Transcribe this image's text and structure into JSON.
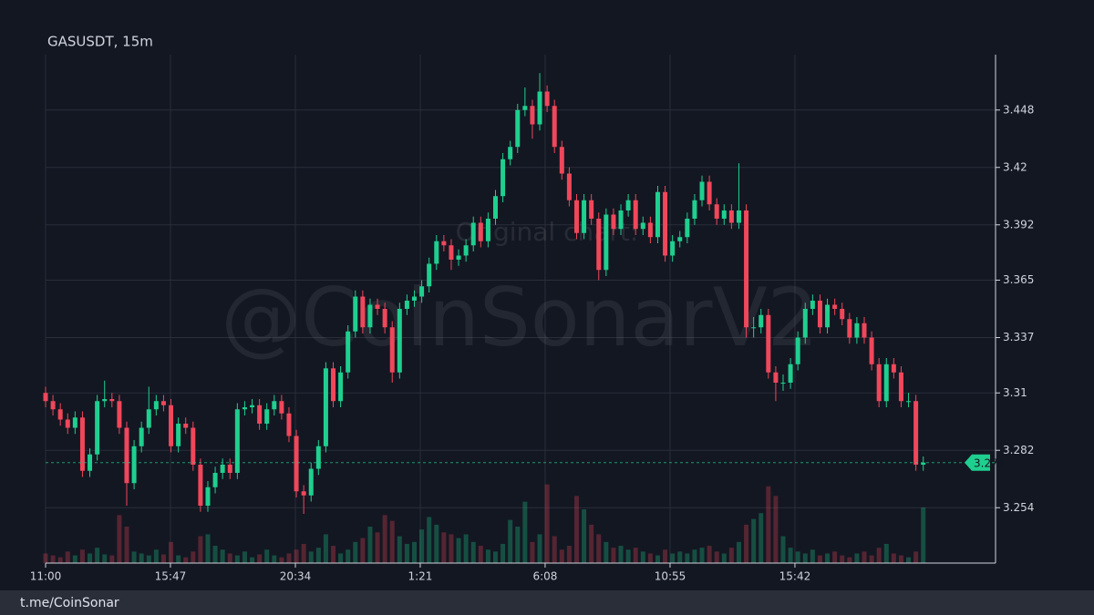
{
  "chart_data": {
    "type": "candlestick",
    "title": "GASUSDT, 15m",
    "open": [
      3.31,
      3.306,
      3.302,
      3.297,
      3.293,
      3.298,
      3.272,
      3.28,
      3.306,
      3.307,
      3.306,
      3.293,
      3.266,
      3.284,
      3.293,
      3.302,
      3.306,
      3.304,
      3.284,
      3.295,
      3.293,
      3.275,
      3.255,
      3.264,
      3.271,
      3.275,
      3.271,
      3.302,
      3.303,
      3.304,
      3.295,
      3.302,
      3.306,
      3.3,
      3.289,
      3.262,
      3.26,
      3.273,
      3.284,
      3.322,
      3.306,
      3.32,
      3.34,
      3.357,
      3.342,
      3.353,
      3.351,
      3.342,
      3.32,
      3.351,
      3.355,
      3.357,
      3.362,
      3.373,
      3.384,
      3.382,
      3.375,
      3.377,
      3.382,
      3.393,
      3.384,
      3.395,
      3.406,
      3.424,
      3.43,
      3.448,
      3.45,
      3.441,
      3.457,
      3.45,
      3.43,
      3.417,
      3.404,
      3.388,
      3.404,
      3.395,
      3.37,
      3.397,
      3.39,
      3.399,
      3.404,
      3.39,
      3.393,
      3.386,
      3.408,
      3.377,
      3.384,
      3.386,
      3.395,
      3.404,
      3.413,
      3.402,
      3.395,
      3.399,
      3.393,
      3.399,
      3.342,
      3.342,
      3.348,
      3.32,
      3.315,
      3.315,
      3.324,
      3.337,
      3.351,
      3.355,
      3.342,
      3.353,
      3.351,
      3.346,
      3.337,
      3.344,
      3.337,
      3.324,
      3.306,
      3.324,
      3.32,
      3.306,
      3.306,
      3.275
    ],
    "high": [
      3.313,
      3.309,
      3.305,
      3.3,
      3.301,
      3.301,
      3.283,
      3.309,
      3.316,
      3.31,
      3.309,
      3.296,
      3.287,
      3.296,
      3.313,
      3.309,
      3.309,
      3.307,
      3.298,
      3.298,
      3.296,
      3.278,
      3.267,
      3.274,
      3.278,
      3.278,
      3.305,
      3.306,
      3.307,
      3.307,
      3.305,
      3.309,
      3.309,
      3.303,
      3.292,
      3.265,
      3.276,
      3.287,
      3.325,
      3.325,
      3.323,
      3.343,
      3.36,
      3.36,
      3.356,
      3.356,
      3.354,
      3.345,
      3.354,
      3.358,
      3.36,
      3.365,
      3.376,
      3.387,
      3.387,
      3.385,
      3.38,
      3.385,
      3.396,
      3.396,
      3.398,
      3.409,
      3.427,
      3.433,
      3.451,
      3.459,
      3.453,
      3.466,
      3.46,
      3.453,
      3.433,
      3.42,
      3.407,
      3.407,
      3.407,
      3.398,
      3.4,
      3.4,
      3.402,
      3.407,
      3.407,
      3.396,
      3.396,
      3.411,
      3.411,
      3.387,
      3.389,
      3.398,
      3.407,
      3.416,
      3.416,
      3.405,
      3.402,
      3.402,
      3.422,
      3.402,
      3.347,
      3.351,
      3.351,
      3.323,
      3.319,
      3.327,
      3.34,
      3.354,
      3.358,
      3.358,
      3.356,
      3.356,
      3.354,
      3.349,
      3.347,
      3.347,
      3.34,
      3.327,
      3.327,
      3.327,
      3.323,
      3.31,
      3.309,
      3.279
    ],
    "low": [
      3.303,
      3.299,
      3.294,
      3.29,
      3.29,
      3.269,
      3.269,
      3.277,
      3.303,
      3.303,
      3.29,
      3.255,
      3.263,
      3.281,
      3.29,
      3.299,
      3.301,
      3.281,
      3.281,
      3.29,
      3.272,
      3.252,
      3.252,
      3.261,
      3.268,
      3.268,
      3.268,
      3.299,
      3.3,
      3.292,
      3.292,
      3.299,
      3.297,
      3.286,
      3.259,
      3.251,
      3.257,
      3.27,
      3.281,
      3.303,
      3.303,
      3.317,
      3.337,
      3.339,
      3.339,
      3.348,
      3.339,
      3.315,
      3.317,
      3.348,
      3.352,
      3.354,
      3.359,
      3.37,
      3.379,
      3.37,
      3.372,
      3.374,
      3.379,
      3.381,
      3.381,
      3.392,
      3.403,
      3.421,
      3.427,
      3.445,
      3.434,
      3.438,
      3.447,
      3.427,
      3.414,
      3.401,
      3.385,
      3.385,
      3.392,
      3.365,
      3.367,
      3.387,
      3.387,
      3.396,
      3.387,
      3.387,
      3.383,
      3.383,
      3.374,
      3.374,
      3.381,
      3.383,
      3.392,
      3.401,
      3.399,
      3.392,
      3.392,
      3.39,
      3.39,
      3.337,
      3.337,
      3.339,
      3.317,
      3.306,
      3.311,
      3.312,
      3.321,
      3.334,
      3.348,
      3.339,
      3.339,
      3.348,
      3.343,
      3.334,
      3.334,
      3.334,
      3.321,
      3.303,
      3.303,
      3.317,
      3.303,
      3.303,
      3.272,
      3.272
    ],
    "close": [
      3.306,
      3.302,
      3.297,
      3.293,
      3.298,
      3.272,
      3.28,
      3.306,
      3.307,
      3.306,
      3.293,
      3.266,
      3.284,
      3.293,
      3.302,
      3.306,
      3.304,
      3.284,
      3.295,
      3.293,
      3.275,
      3.255,
      3.264,
      3.271,
      3.275,
      3.271,
      3.302,
      3.303,
      3.304,
      3.295,
      3.302,
      3.306,
      3.3,
      3.289,
      3.262,
      3.26,
      3.273,
      3.284,
      3.322,
      3.306,
      3.32,
      3.34,
      3.357,
      3.342,
      3.353,
      3.351,
      3.342,
      3.32,
      3.351,
      3.355,
      3.357,
      3.362,
      3.373,
      3.384,
      3.382,
      3.375,
      3.377,
      3.382,
      3.393,
      3.384,
      3.395,
      3.406,
      3.424,
      3.43,
      3.448,
      3.45,
      3.441,
      3.457,
      3.45,
      3.43,
      3.417,
      3.404,
      3.388,
      3.404,
      3.395,
      3.37,
      3.397,
      3.39,
      3.399,
      3.404,
      3.39,
      3.393,
      3.386,
      3.408,
      3.377,
      3.384,
      3.386,
      3.395,
      3.404,
      3.413,
      3.402,
      3.395,
      3.399,
      3.393,
      3.399,
      3.342,
      3.342,
      3.348,
      3.32,
      3.315,
      3.315,
      3.324,
      3.337,
      3.351,
      3.355,
      3.342,
      3.353,
      3.351,
      3.346,
      3.337,
      3.344,
      3.337,
      3.324,
      3.306,
      3.324,
      3.32,
      3.306,
      3.306,
      3.275,
      3.276
    ],
    "volume": [
      10,
      8,
      6,
      12,
      8,
      14,
      10,
      16,
      9,
      8,
      50,
      38,
      12,
      10,
      8,
      14,
      9,
      22,
      8,
      6,
      12,
      28,
      30,
      18,
      14,
      10,
      8,
      12,
      6,
      9,
      14,
      8,
      6,
      10,
      14,
      20,
      12,
      16,
      30,
      18,
      10,
      14,
      22,
      26,
      38,
      32,
      50,
      44,
      28,
      20,
      22,
      35,
      48,
      40,
      32,
      30,
      26,
      30,
      22,
      18,
      14,
      12,
      20,
      45,
      38,
      64,
      22,
      30,
      82,
      28,
      14,
      18,
      70,
      56,
      40,
      30,
      22,
      16,
      18,
      14,
      16,
      12,
      10,
      8,
      14,
      10,
      12,
      10,
      14,
      16,
      18,
      12,
      10,
      16,
      22,
      40,
      46,
      52,
      80,
      70,
      28,
      16,
      12,
      10,
      14,
      8,
      10,
      12,
      8,
      6,
      10,
      12,
      8,
      16,
      20,
      10,
      8,
      6,
      12,
      58
    ],
    "volume_lim": [
      0,
      95
    ],
    "up_color": "#1fcf8f",
    "down_color": "#f0475b",
    "ylim": [
      3.227,
      3.475
    ],
    "yticks": [
      3.254,
      3.282,
      3.31,
      3.337,
      3.365,
      3.392,
      3.42,
      3.448
    ],
    "xlim": [
      0,
      128.8
    ],
    "xticks": [
      {
        "value": 0,
        "label": "11:00"
      },
      {
        "value": 16.93,
        "label": "15:47"
      },
      {
        "value": 33.87,
        "label": "20:34"
      },
      {
        "value": 50.8,
        "label": "1:21"
      },
      {
        "value": 67.73,
        "label": "6:08"
      },
      {
        "value": 84.67,
        "label": "10:55"
      },
      {
        "value": 101.6,
        "label": "15:42"
      }
    ],
    "grid": true,
    "watermark": "@CoinSonarV2",
    "note": "Original chart:"
  },
  "footer": "t.me/CoinSonar"
}
